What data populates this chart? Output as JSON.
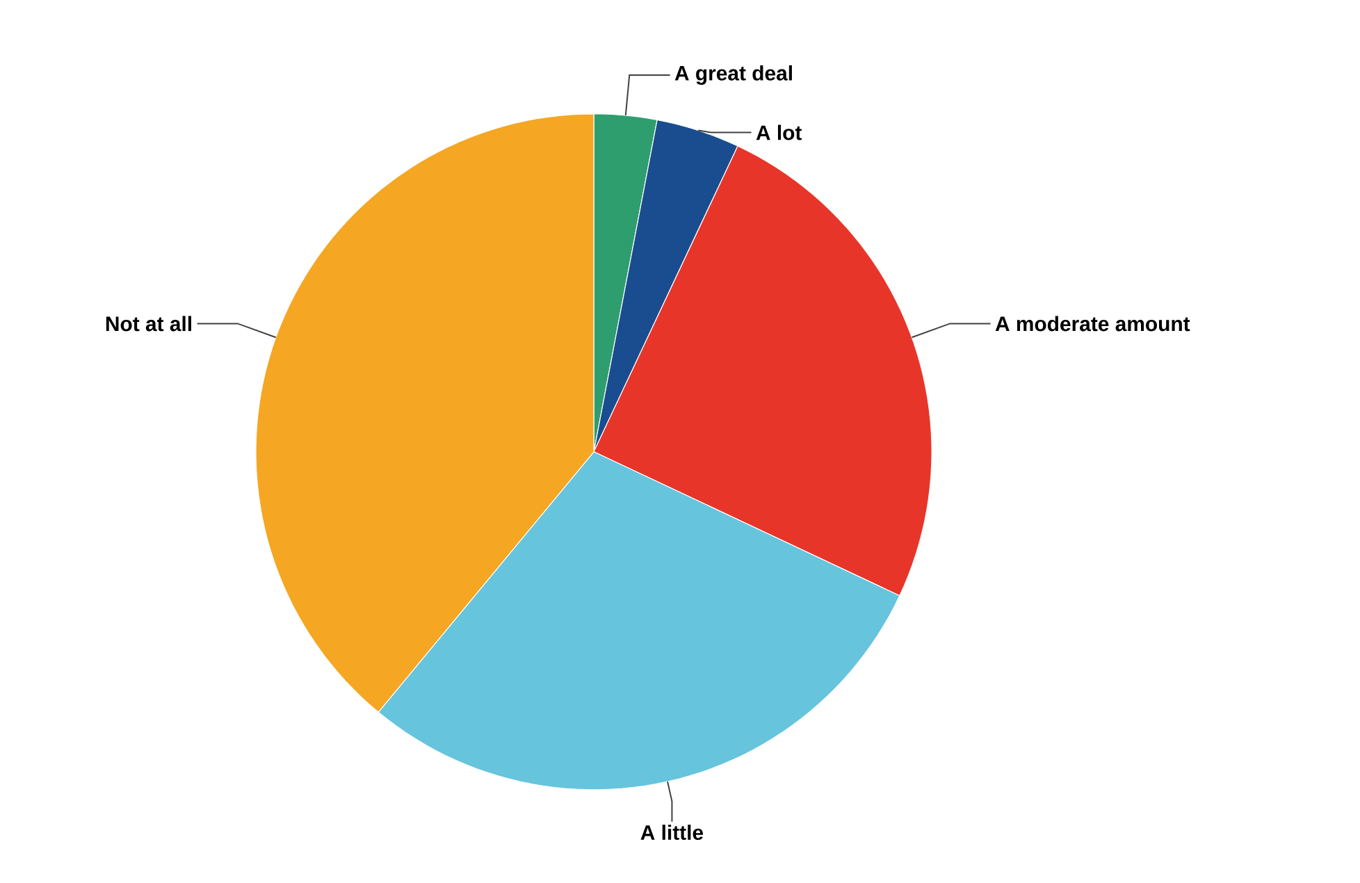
{
  "chart_data": {
    "type": "pie",
    "categories": [
      "A great deal",
      "A lot",
      "A moderate amount",
      "A little",
      "Not at all"
    ],
    "values": [
      3,
      4,
      25,
      29,
      39
    ],
    "colors": [
      "#2e9e6e",
      "#1a4d8f",
      "#e8352a",
      "#66c4dd",
      "#f5a623"
    ]
  }
}
